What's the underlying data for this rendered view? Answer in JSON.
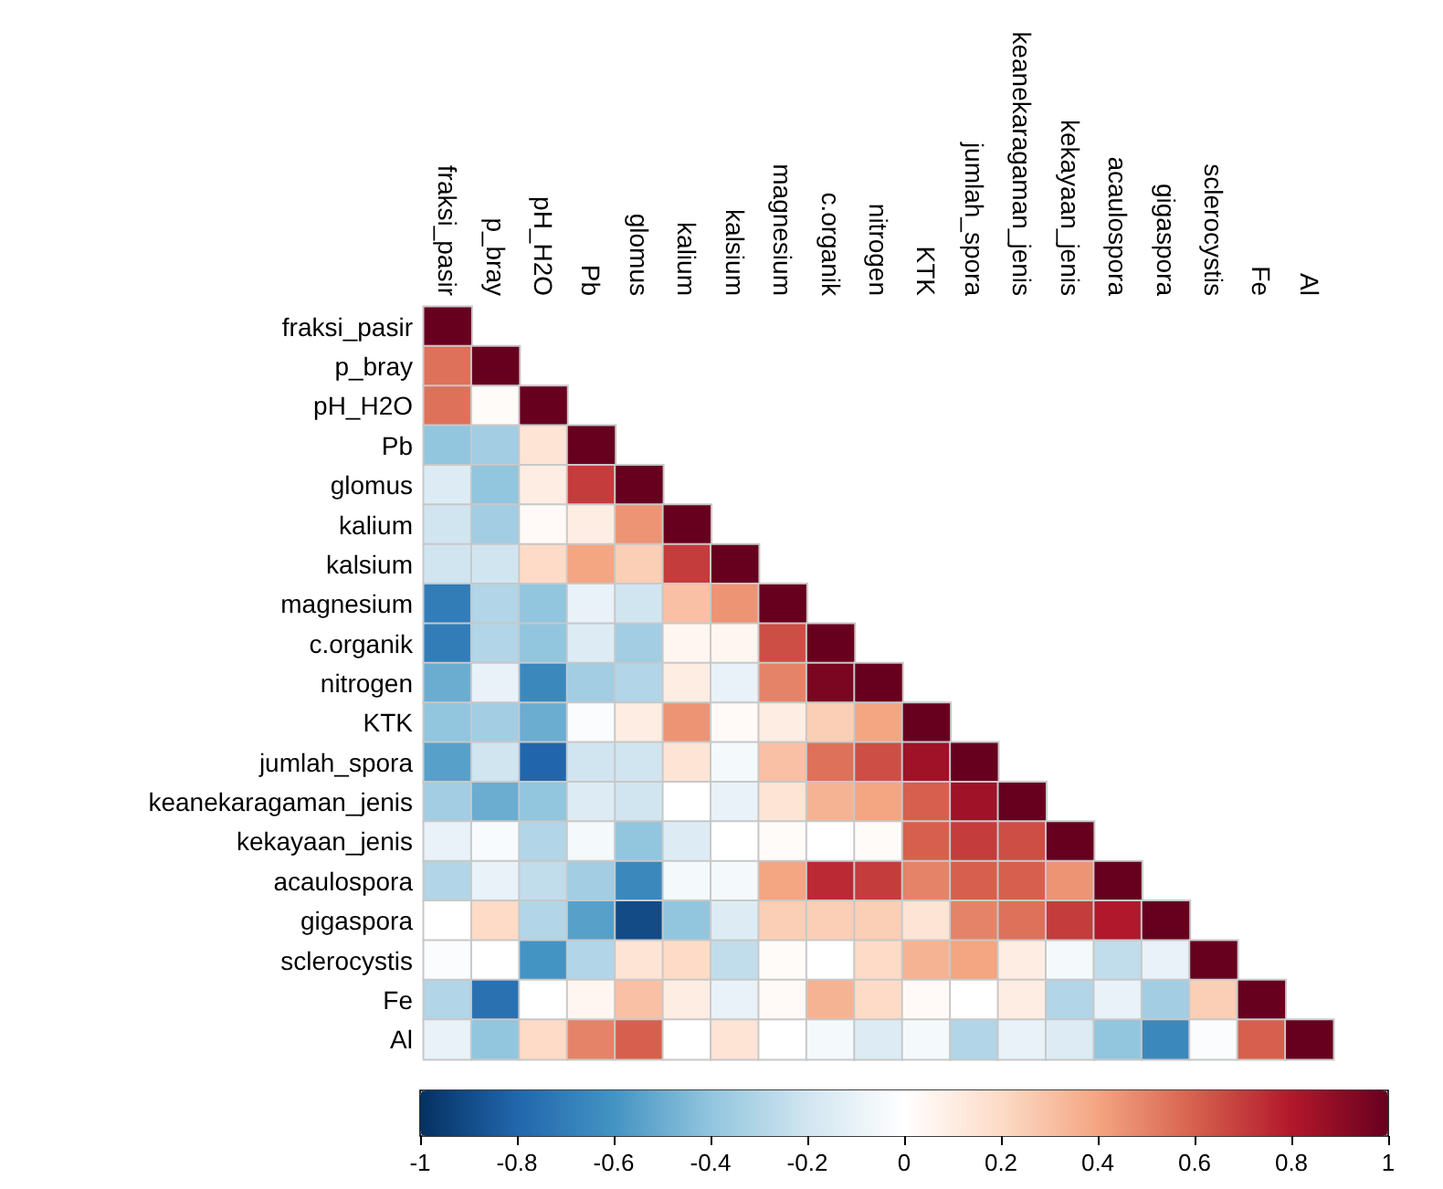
{
  "chart_data": {
    "type": "heatmap",
    "categories": [
      "fraksi_pasir",
      "p_bray",
      "pH_H2O",
      "Pb",
      "glomus",
      "kalium",
      "kalsium",
      "magnesium",
      "c.organik",
      "nitrogen",
      "KTK",
      "jumlah_spora",
      "keanekaragaman_jenis",
      "kekayaan_jenis",
      "acaulospora",
      "gigaspora",
      "sclerocystis",
      "Fe",
      "Al"
    ],
    "y_categories": [
      "fraksi_pasir",
      "p_bray",
      "pH_H2O",
      "Pb",
      "glomus",
      "kalium",
      "kalsium",
      "magnesium",
      "c.organik",
      "nitrogen",
      "KTK",
      "jumlah_spora",
      "keanekaragaman_jenis",
      "kekayaan_jenis",
      "acaulospora",
      "gigaspora",
      "sclerocystis",
      "Fe",
      "Al"
    ],
    "cells": [
      [
        1,
        null,
        null,
        null,
        null,
        null,
        null,
        null,
        null,
        null,
        null,
        null,
        null,
        null,
        null,
        null,
        null,
        null,
        null
      ],
      [
        0.55,
        1,
        null,
        null,
        null,
        null,
        null,
        null,
        null,
        null,
        null,
        null,
        null,
        null,
        null,
        null,
        null,
        null,
        null
      ],
      [
        0.55,
        0.02,
        1,
        null,
        null,
        null,
        null,
        null,
        null,
        null,
        null,
        null,
        null,
        null,
        null,
        null,
        null,
        null,
        null
      ],
      [
        -0.4,
        -0.35,
        0.15,
        1,
        null,
        null,
        null,
        null,
        null,
        null,
        null,
        null,
        null,
        null,
        null,
        null,
        null,
        null,
        null
      ],
      [
        -0.15,
        -0.4,
        0.1,
        0.7,
        1,
        null,
        null,
        null,
        null,
        null,
        null,
        null,
        null,
        null,
        null,
        null,
        null,
        null,
        null
      ],
      [
        -0.2,
        -0.35,
        0.03,
        0.1,
        0.45,
        1,
        null,
        null,
        null,
        null,
        null,
        null,
        null,
        null,
        null,
        null,
        null,
        null,
        null
      ],
      [
        -0.2,
        -0.2,
        0.2,
        0.4,
        0.25,
        0.7,
        1,
        null,
        null,
        null,
        null,
        null,
        null,
        null,
        null,
        null,
        null,
        null,
        null
      ],
      [
        -0.7,
        -0.3,
        -0.4,
        -0.1,
        -0.2,
        0.3,
        0.45,
        1,
        null,
        null,
        null,
        null,
        null,
        null,
        null,
        null,
        null,
        null,
        null
      ],
      [
        -0.7,
        -0.3,
        -0.4,
        -0.15,
        -0.35,
        0.05,
        0.05,
        0.65,
        1,
        null,
        null,
        null,
        null,
        null,
        null,
        null,
        null,
        null,
        null
      ],
      [
        -0.5,
        -0.1,
        -0.65,
        -0.35,
        -0.3,
        0.1,
        -0.1,
        0.5,
        0.95,
        1,
        null,
        null,
        null,
        null,
        null,
        null,
        null,
        null,
        null
      ],
      [
        -0.4,
        -0.35,
        -0.5,
        -0.02,
        0.1,
        0.45,
        0.03,
        0.1,
        0.25,
        0.4,
        1,
        null,
        null,
        null,
        null,
        null,
        null,
        null,
        null
      ],
      [
        -0.55,
        -0.2,
        -0.8,
        -0.2,
        -0.2,
        0.15,
        -0.05,
        0.3,
        0.55,
        0.65,
        0.85,
        1,
        null,
        null,
        null,
        null,
        null,
        null,
        null
      ],
      [
        -0.35,
        -0.5,
        -0.4,
        -0.15,
        -0.2,
        0,
        -0.1,
        0.15,
        0.35,
        0.4,
        0.6,
        0.85,
        1,
        null,
        null,
        null,
        null,
        null,
        null
      ],
      [
        -0.1,
        -0.03,
        -0.3,
        -0.05,
        -0.4,
        -0.15,
        0,
        0.02,
        0,
        0.02,
        0.6,
        0.7,
        0.65,
        1,
        null,
        null,
        null,
        null,
        null
      ],
      [
        -0.3,
        -0.1,
        -0.25,
        -0.35,
        -0.65,
        -0.05,
        -0.05,
        0.4,
        0.75,
        0.7,
        0.5,
        0.6,
        0.6,
        0.45,
        1,
        null,
        null,
        null,
        null
      ],
      [
        0,
        0.2,
        -0.3,
        -0.55,
        -0.9,
        -0.4,
        -0.15,
        0.25,
        0.25,
        0.25,
        0.15,
        0.5,
        0.55,
        0.7,
        0.8,
        1,
        null,
        null,
        null
      ],
      [
        -0.02,
        0,
        -0.6,
        -0.3,
        0.15,
        0.2,
        -0.25,
        0.02,
        0,
        0.2,
        0.35,
        0.4,
        0.1,
        -0.05,
        -0.25,
        -0.1,
        1,
        null,
        null
      ],
      [
        -0.3,
        -0.75,
        0,
        0.05,
        0.3,
        0.1,
        -0.1,
        0.03,
        0.35,
        0.2,
        0.03,
        0,
        0.1,
        -0.3,
        -0.1,
        -0.35,
        0.25,
        1,
        null
      ],
      [
        -0.1,
        -0.4,
        0.2,
        0.5,
        0.6,
        0,
        0.15,
        0,
        -0.05,
        -0.15,
        -0.05,
        -0.3,
        -0.1,
        -0.15,
        -0.4,
        -0.65,
        -0.02,
        0.6,
        1
      ]
    ],
    "clim": [
      -1,
      1
    ],
    "cticks": [
      -1,
      -0.8,
      -0.6,
      -0.4,
      -0.2,
      0,
      0.2,
      0.4,
      0.6,
      0.8,
      1
    ]
  }
}
